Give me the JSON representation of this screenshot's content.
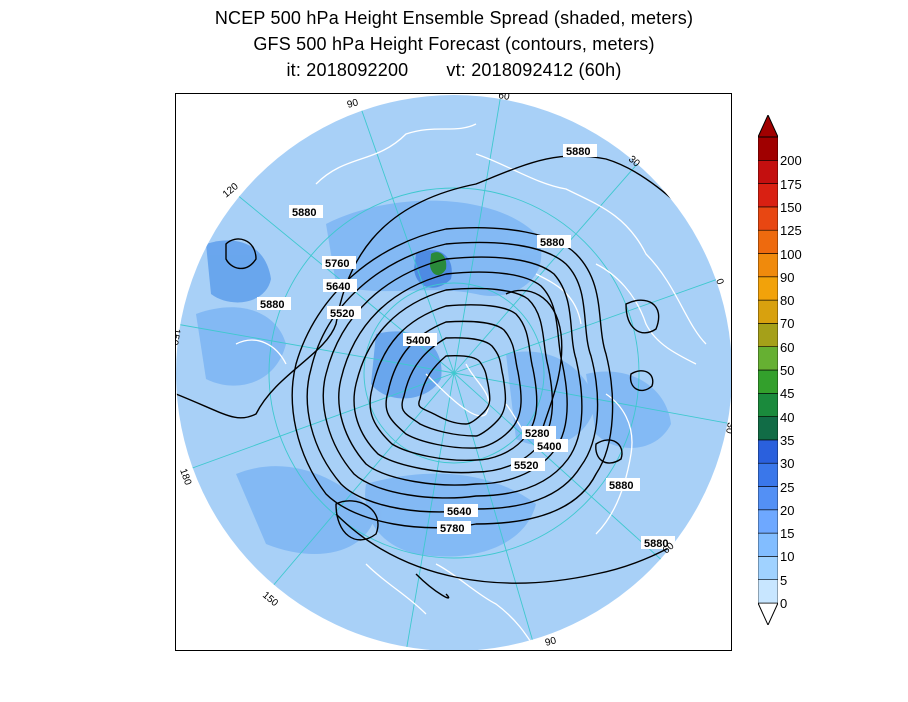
{
  "title": {
    "line1": "NCEP 500 hPa Height Ensemble Spread (shaded, meters)",
    "line2": "GFS 500 hPa Height Forecast (contours, meters)",
    "init_label": "it: 2018092200",
    "valid_label": "vt: 2018092412 (60h)"
  },
  "map": {
    "projection": "north-polar-stereographic",
    "background_color": "#9ec9f5",
    "disk_color": "#a8d0f7",
    "coastline_color": "#ffffff",
    "grid_color": "#3fc8cf",
    "contour_color": "#000000",
    "longitude_labels": [
      "60",
      "30",
      "0",
      "30",
      "60",
      "90",
      "120",
      "150",
      "180",
      "150",
      "120",
      "90"
    ],
    "contour_labels": [
      {
        "text": "5880"
      },
      {
        "text": "5880"
      },
      {
        "text": "5880"
      },
      {
        "text": "5880"
      },
      {
        "text": "5880"
      },
      {
        "text": "5880"
      },
      {
        "text": "5760"
      },
      {
        "text": "5640"
      },
      {
        "text": "5520"
      },
      {
        "text": "5400"
      },
      {
        "text": "5280"
      },
      {
        "text": "5400"
      },
      {
        "text": "5520"
      },
      {
        "text": "5640"
      },
      {
        "text": "5780"
      }
    ]
  },
  "colorbar": {
    "labels": [
      "0",
      "5",
      "10",
      "15",
      "20",
      "25",
      "30",
      "35",
      "40",
      "45",
      "50",
      "60",
      "70",
      "80",
      "90",
      "100",
      "125",
      "150",
      "175",
      "200"
    ],
    "colors": [
      "#c8e6ff",
      "#a0d2ff",
      "#82bdff",
      "#6ea8ff",
      "#5390f5",
      "#3a77ea",
      "#2a60dd",
      "#116c46",
      "#1a8a3c",
      "#33a02c",
      "#66b032",
      "#a5a019",
      "#d8a10e",
      "#f2a20a",
      "#f08a0c",
      "#ee6a0e",
      "#e84712",
      "#d92012",
      "#c40f0f",
      "#a00000"
    ]
  }
}
